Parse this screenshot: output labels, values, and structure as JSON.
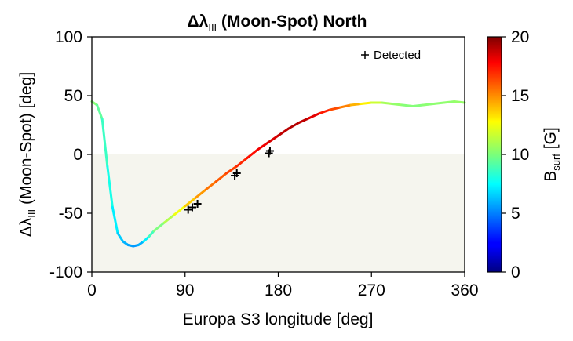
{
  "chart_data": {
    "type": "line",
    "title": {
      "prefix": "Δλ",
      "subscript": "III",
      "suffix": " (Moon-Spot) North"
    },
    "xlabel": "Europa S3 longitude [deg]",
    "ylabel": {
      "prefix": "Δλ",
      "subscript": "III",
      "suffix": " (Moon-Spot) [deg]"
    },
    "xlim": [
      0,
      360
    ],
    "ylim": [
      -100,
      100
    ],
    "xticks": [
      0,
      90,
      180,
      270,
      360
    ],
    "xtick_labels": [
      "0",
      "90",
      "180",
      "270",
      "360"
    ],
    "yticks": [
      -100,
      -50,
      0,
      50,
      100
    ],
    "ytick_labels": [
      "-100",
      "-50",
      "0",
      "50",
      "100"
    ],
    "shaded_region": {
      "ymin": -100,
      "ymax": 0,
      "color": "#f5f5ee"
    },
    "colorbar": {
      "label": {
        "prefix": "B",
        "subscript": "surf",
        "suffix": " [G]"
      },
      "range": [
        0,
        20
      ],
      "ticks": [
        0,
        5,
        10,
        15,
        20
      ],
      "tick_labels": [
        "0",
        "5",
        "10",
        "15",
        "20"
      ],
      "colormap": "jet"
    },
    "series": [
      {
        "style": "colored-line",
        "x": [
          0,
          5,
          10,
          15,
          20,
          25,
          30,
          35,
          40,
          45,
          50,
          55,
          60,
          70,
          80,
          90,
          100,
          110,
          120,
          130,
          140,
          150,
          160,
          170,
          180,
          190,
          200,
          210,
          220,
          230,
          240,
          250,
          260,
          270,
          280,
          290,
          300,
          310,
          320,
          330,
          340,
          350,
          360
        ],
        "y": [
          45,
          42,
          30,
          -10,
          -45,
          -67,
          -74,
          -77,
          -78,
          -77,
          -74,
          -70,
          -65,
          -58,
          -51,
          -44,
          -37,
          -30,
          -23,
          -16,
          -10,
          -3,
          4,
          10,
          16,
          22,
          27,
          31,
          35,
          38,
          40,
          42,
          43,
          44,
          44,
          43,
          42,
          41,
          42,
          43,
          44,
          45,
          44
        ],
        "b": [
          10.5,
          9.8,
          9.0,
          8.3,
          7.6,
          6.8,
          6.2,
          5.8,
          5.5,
          5.5,
          6.5,
          8.0,
          9.5,
          10.5,
          11.5,
          13.0,
          14.0,
          15.0,
          15.5,
          16.0,
          16.5,
          17.0,
          17.5,
          18.0,
          18.5,
          19.0,
          19.0,
          18.5,
          17.5,
          16.5,
          15.5,
          14.5,
          13.5,
          12.0,
          11.0,
          10.5,
          10.3,
          10.0,
          10.2,
          10.3,
          10.3,
          10.4,
          10.5
        ]
      },
      {
        "name": "Detected",
        "style": "plus-markers",
        "color": "#000000",
        "points": [
          {
            "x": 93,
            "y": -47
          },
          {
            "x": 97,
            "y": -45
          },
          {
            "x": 102,
            "y": -42
          },
          {
            "x": 138,
            "y": -18
          },
          {
            "x": 140,
            "y": -16
          },
          {
            "x": 171,
            "y": 1
          },
          {
            "x": 172,
            "y": 3
          }
        ]
      }
    ],
    "legend": {
      "entries": [
        "Detected"
      ],
      "placement": "top-right"
    },
    "grid": false
  }
}
